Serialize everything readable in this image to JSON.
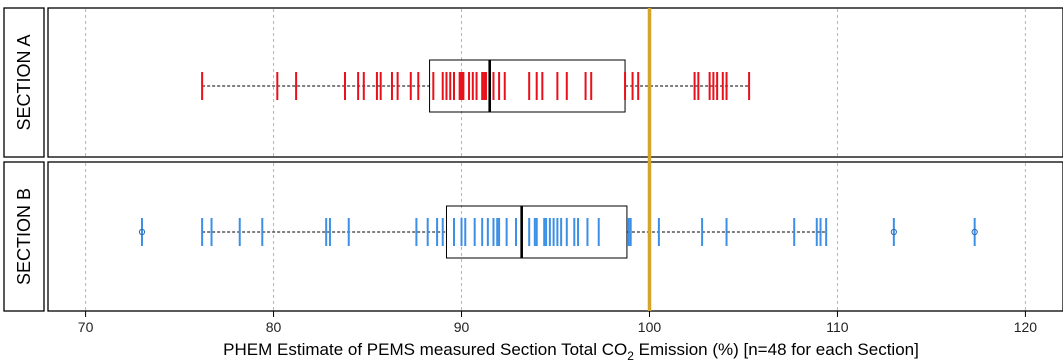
{
  "chart_data": {
    "type": "boxplot-strip",
    "xlabel_prefix": "PHEM Estimate of PEMS measured Section Total CO",
    "xlabel_subscript": "2",
    "xlabel_suffix": " Emission (%) [n=48 for each Section]",
    "xlim": [
      68,
      122
    ],
    "xticks": [
      70,
      80,
      90,
      100,
      110,
      120
    ],
    "grid": "vertical dashed",
    "reference_line": {
      "x": 100,
      "color": "#D4A52A"
    },
    "panels": [
      {
        "name": "SECTION A",
        "color": "#E8101A",
        "box": {
          "whisker_low": 76.2,
          "q1": 88.3,
          "median": 91.5,
          "q3": 98.7,
          "whisker_high": 105.3
        },
        "outliers": [],
        "values": [
          76.2,
          80.2,
          81.2,
          83.8,
          84.5,
          84.8,
          85.5,
          85.7,
          86.3,
          86.6,
          87.3,
          87.7,
          88.5,
          89.0,
          89.4,
          89.6,
          89.9,
          90.1,
          90.4,
          90.6,
          90.8,
          91.2,
          91.3,
          91.5,
          91.7,
          92.0,
          92.3,
          93.6,
          94.0,
          94.3,
          95.1,
          95.6,
          96.6,
          96.9,
          98.7,
          99.1,
          99.4,
          102.4,
          102.6,
          103.2,
          103.4,
          103.6,
          103.9,
          104.1,
          105.3,
          89.2,
          90.0,
          91.1
        ]
      },
      {
        "name": "SECTION B",
        "color": "#3B8FE6",
        "box": {
          "whisker_low": 76.2,
          "q1": 89.2,
          "median": 93.2,
          "q3": 98.8,
          "whisker_high": 109.4
        },
        "outliers": [
          73.0,
          113.0,
          117.3
        ],
        "values": [
          73.0,
          76.2,
          76.7,
          78.2,
          79.4,
          82.8,
          83.0,
          84.0,
          87.6,
          88.2,
          88.7,
          89.0,
          89.6,
          90.2,
          90.7,
          91.1,
          91.4,
          91.7,
          92.0,
          92.4,
          92.9,
          93.6,
          94.4,
          94.7,
          94.9,
          95.1,
          95.3,
          95.6,
          96.2,
          96.7,
          97.3,
          98.9,
          99.0,
          100.5,
          102.8,
          104.1,
          107.7,
          108.9,
          109.1,
          109.4,
          113.0,
          117.3,
          94.0,
          94.5,
          96.0,
          90.0,
          91.9,
          93.9
        ]
      }
    ]
  }
}
